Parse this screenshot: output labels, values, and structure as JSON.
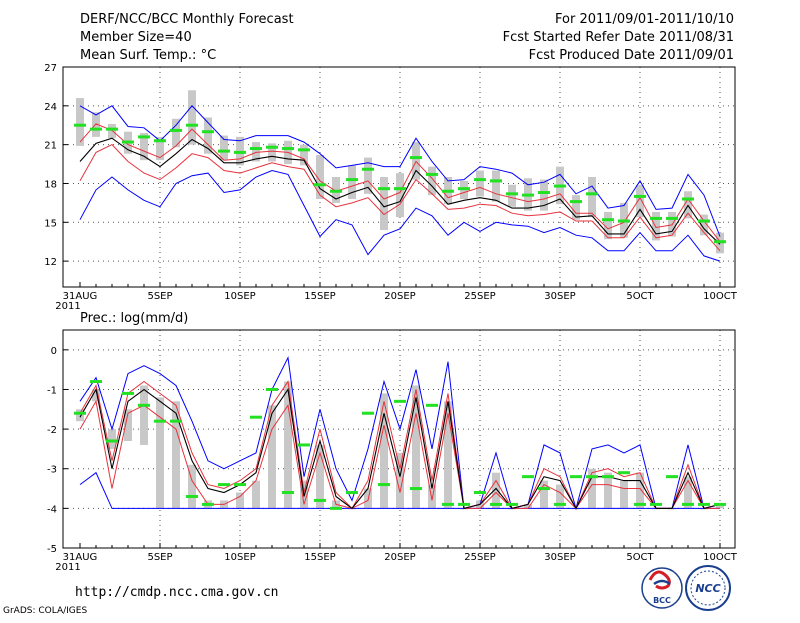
{
  "header": {
    "title": "DERF/NCC/BCC Monthly Forecast",
    "member_size": "Member Size=40",
    "variable": "Mean Surf. Temp.: °C",
    "period": "For 2011/09/01-2011/10/10",
    "started": "Fcst Started Refer Date 2011/08/31",
    "produced": "Fcst Produced Date 2011/09/01"
  },
  "footer": {
    "url": "http://cmdp.ncc.cma.gov.cn",
    "credit": "GrADS: COLA/IGES",
    "logo_bcc": "BCC",
    "logo_ncc": "NCC"
  },
  "colors": {
    "ensemble_mean": "#000000",
    "spread_band": "#e8323c",
    "extremes": "#0000ff",
    "median_marker": "#22e122",
    "box": "#c8c8c8",
    "grid": "#555555"
  },
  "chart_data": [
    {
      "type": "line",
      "title": "Mean Surf. Temp.: °C",
      "x_tick_labels": [
        "31AUG",
        "5SEP",
        "10SEP",
        "15SEP",
        "20SEP",
        "25SEP",
        "30SEP",
        "5OCT",
        "10OCT"
      ],
      "x_year_label": "2011",
      "ylim": [
        10,
        27
      ],
      "y_ticks": [
        12,
        15,
        18,
        21,
        24,
        27
      ],
      "series": [
        {
          "name": "max",
          "values": [
            24.0,
            23.3,
            24.0,
            22.4,
            22.3,
            21.3,
            22.5,
            24.0,
            22.7,
            21.4,
            21.3,
            21.7,
            21.7,
            21.7,
            21.2,
            20.3,
            19.2,
            19.4,
            19.6,
            19.3,
            19.3,
            21.5,
            19.7,
            18.2,
            18.3,
            19.3,
            19.1,
            18.8,
            17.9,
            18.1,
            18.7,
            17.2,
            17.8,
            16.1,
            16.3,
            18.2,
            16.0,
            16.1,
            18.7,
            17.1,
            13.9
          ]
        },
        {
          "name": "upper",
          "values": [
            21.2,
            22.6,
            22.1,
            21.0,
            20.5,
            20.0,
            20.9,
            22.2,
            21.0,
            19.8,
            19.9,
            20.4,
            20.5,
            20.4,
            19.9,
            18.2,
            17.4,
            17.8,
            18.2,
            16.8,
            17.3,
            19.7,
            18.4,
            16.9,
            17.3,
            17.7,
            17.2,
            16.9,
            16.6,
            16.8,
            17.2,
            15.7,
            15.7,
            14.5,
            15.0,
            16.9,
            14.6,
            14.8,
            16.8,
            15.1,
            13.5
          ]
        },
        {
          "name": "mean",
          "values": [
            19.7,
            21.1,
            21.5,
            20.6,
            20.1,
            19.3,
            20.3,
            21.4,
            20.7,
            19.6,
            19.6,
            19.9,
            20.1,
            19.9,
            19.8,
            17.6,
            16.8,
            17.3,
            17.7,
            16.2,
            16.6,
            19.0,
            17.8,
            16.4,
            16.7,
            16.9,
            16.7,
            16.1,
            16.1,
            16.3,
            16.8,
            15.4,
            15.5,
            14.1,
            14.1,
            16.0,
            14.1,
            14.3,
            16.3,
            14.5,
            13.3
          ]
        },
        {
          "name": "lower",
          "values": [
            18.2,
            20.4,
            21.0,
            19.7,
            18.8,
            18.3,
            19.2,
            20.3,
            20.0,
            19.0,
            18.8,
            19.2,
            19.6,
            19.3,
            19.1,
            17.1,
            16.2,
            16.5,
            16.9,
            15.6,
            16.4,
            18.3,
            17.2,
            16.0,
            16.1,
            16.4,
            16.3,
            15.7,
            15.5,
            15.6,
            15.8,
            15.1,
            15.1,
            13.8,
            13.8,
            15.4,
            13.8,
            14.0,
            15.7,
            14.2,
            12.8
          ]
        },
        {
          "name": "min",
          "values": [
            15.2,
            17.5,
            18.5,
            17.5,
            16.7,
            16.2,
            18.0,
            18.6,
            18.8,
            17.3,
            17.5,
            18.5,
            19.0,
            18.7,
            16.3,
            13.9,
            15.2,
            14.8,
            12.5,
            14.0,
            14.5,
            16.1,
            15.5,
            14.0,
            15.0,
            14.3,
            15.0,
            14.8,
            14.7,
            14.2,
            14.6,
            14.0,
            13.8,
            12.8,
            12.8,
            14.2,
            12.8,
            12.8,
            14.0,
            12.4,
            12.0
          ]
        },
        {
          "name": "median",
          "values": [
            22.5,
            22.2,
            22.2,
            21.2,
            21.6,
            21.3,
            22.1,
            22.5,
            22.0,
            20.5,
            20.4,
            20.7,
            20.8,
            20.7,
            20.6,
            17.9,
            17.4,
            18.3,
            19.1,
            17.6,
            17.6,
            20.0,
            18.7,
            17.4,
            17.6,
            18.3,
            18.2,
            17.2,
            17.1,
            17.3,
            17.8,
            16.6,
            17.2,
            15.2,
            15.1,
            17.0,
            15.3,
            15.3,
            16.8,
            15.1,
            13.5
          ]
        },
        {
          "name": "box_high",
          "values": [
            24.6,
            23.5,
            22.6,
            22.0,
            21.9,
            21.6,
            23.0,
            25.2,
            23.1,
            21.7,
            21.6,
            21.2,
            21.1,
            21.3,
            21.0,
            20.2,
            18.5,
            19.4,
            20.0,
            18.5,
            18.8,
            21.2,
            19.3,
            18.5,
            18.2,
            19.0,
            19.0,
            17.9,
            18.4,
            18.3,
            19.3,
            17.1,
            18.5,
            15.8,
            16.5,
            17.9,
            15.8,
            15.8,
            17.4,
            15.6,
            14.2
          ]
        },
        {
          "name": "box_low",
          "values": [
            20.9,
            21.6,
            21.5,
            20.3,
            19.8,
            19.8,
            20.8,
            21.0,
            20.3,
            19.8,
            19.4,
            19.7,
            19.7,
            19.5,
            19.4,
            16.8,
            16.5,
            16.8,
            17.2,
            14.4,
            15.4,
            18.3,
            17.1,
            16.4,
            16.8,
            17.0,
            16.6,
            16.2,
            15.9,
            15.9,
            16.4,
            15.2,
            15.4,
            13.7,
            13.8,
            15.4,
            13.6,
            13.9,
            15.3,
            14.0,
            12.6
          ]
        }
      ]
    },
    {
      "type": "line",
      "title": "Prec.: log(mm/d)",
      "x_tick_labels": [
        "31AUG",
        "5SEP",
        "10SEP",
        "15SEP",
        "20SEP",
        "25SEP",
        "30SEP",
        "5OCT",
        "10OCT"
      ],
      "x_year_label": "2011",
      "ylim": [
        -5,
        0.5
      ],
      "y_ticks": [
        0,
        -1,
        -2,
        -3,
        -4,
        -5
      ],
      "series": [
        {
          "name": "max",
          "values": [
            -1.3,
            -0.7,
            -2.0,
            -0.6,
            -0.4,
            -0.6,
            -0.9,
            -1.8,
            -2.8,
            -3.0,
            -2.8,
            -2.6,
            -1.0,
            -0.2,
            -3.2,
            -1.5,
            -3.0,
            -3.8,
            -2.5,
            -0.8,
            -2.0,
            -0.5,
            -2.5,
            -0.3,
            -4.0,
            -3.9,
            -2.6,
            -4.0,
            -3.9,
            -2.4,
            -2.6,
            -4.0,
            -2.5,
            -2.4,
            -2.6,
            -2.4,
            -4.0,
            -4.0,
            -2.4,
            -4.0,
            -3.9
          ]
        },
        {
          "name": "upper",
          "values": [
            -1.6,
            -0.9,
            -2.8,
            -1.1,
            -0.8,
            -1.1,
            -1.4,
            -2.6,
            -3.4,
            -3.5,
            -3.3,
            -3.0,
            -1.4,
            -0.8,
            -3.6,
            -2.0,
            -3.6,
            -4.0,
            -3.3,
            -1.3,
            -3.0,
            -1.0,
            -3.3,
            -1.1,
            -4.0,
            -3.9,
            -3.3,
            -4.0,
            -3.9,
            -3.0,
            -3.2,
            -4.0,
            -3.1,
            -3.0,
            -3.2,
            -3.1,
            -4.0,
            -4.0,
            -2.9,
            -4.0,
            -3.9
          ]
        },
        {
          "name": "mean",
          "values": [
            -1.7,
            -1.0,
            -3.0,
            -1.3,
            -1.0,
            -1.3,
            -1.6,
            -2.8,
            -3.5,
            -3.6,
            -3.4,
            -3.1,
            -1.6,
            -1.0,
            -3.7,
            -2.3,
            -3.7,
            -4.0,
            -3.5,
            -1.6,
            -3.2,
            -1.2,
            -3.5,
            -1.3,
            -4.0,
            -3.9,
            -3.5,
            -4.0,
            -3.9,
            -3.2,
            -3.3,
            -4.0,
            -3.2,
            -3.2,
            -3.3,
            -3.3,
            -4.0,
            -4.0,
            -3.1,
            -4.0,
            -3.9
          ]
        },
        {
          "name": "lower",
          "values": [
            -2.0,
            -1.3,
            -3.5,
            -1.6,
            -1.4,
            -1.7,
            -2.0,
            -3.3,
            -3.9,
            -3.9,
            -3.7,
            -3.3,
            -2.0,
            -1.4,
            -3.9,
            -2.6,
            -3.9,
            -4.0,
            -3.8,
            -1.9,
            -3.6,
            -1.6,
            -3.8,
            -1.6,
            -4.0,
            -4.0,
            -3.6,
            -4.0,
            -4.0,
            -3.4,
            -3.6,
            -4.0,
            -3.4,
            -3.4,
            -3.5,
            -3.5,
            -4.0,
            -4.0,
            -3.3,
            -4.0,
            -4.0
          ]
        },
        {
          "name": "min",
          "values": [
            -3.4,
            -3.1,
            -4.0,
            -4.0,
            -4.0,
            -4.0,
            -4.0,
            -4.0,
            -4.0,
            -4.0,
            -4.0,
            -4.0,
            -4.0,
            -4.0,
            -4.0,
            -4.0,
            -4.0,
            -4.0,
            -4.0,
            -4.0,
            -4.0,
            -4.0,
            -4.0,
            -4.0,
            -4.0,
            -4.0,
            -4.0,
            -4.0,
            -4.0,
            -4.0,
            -4.0,
            -4.0,
            -4.0,
            -4.0,
            -4.0,
            -4.0,
            -4.0,
            -4.0,
            -4.0,
            -4.0,
            -4.0
          ]
        },
        {
          "name": "median",
          "values": [
            -1.6,
            -0.8,
            -2.3,
            -1.1,
            -1.4,
            -1.8,
            -1.8,
            -3.7,
            -3.9,
            -3.4,
            -3.4,
            -1.7,
            -1.0,
            -3.6,
            -2.4,
            -3.8,
            -4.0,
            -3.6,
            -1.6,
            -3.4,
            -1.3,
            -3.5,
            -1.4,
            -3.9,
            -3.9,
            -3.6,
            -3.9,
            -3.9,
            -3.2,
            -3.5,
            -3.9,
            -3.2,
            -3.2,
            -3.2,
            -3.1,
            -3.9,
            -3.9,
            -3.2,
            -3.9,
            -3.9,
            -3.9
          ]
        },
        {
          "name": "box_high",
          "values": [
            -1.5,
            -1.0,
            -2.0,
            -1.5,
            -0.9,
            -1.2,
            -1.3,
            -2.9,
            -3.8,
            -3.8,
            -3.6,
            -3.3,
            -1.4,
            -0.8,
            -3.3,
            -2.4,
            -3.8,
            -4.0,
            -3.5,
            -1.1,
            -2.6,
            -0.9,
            -3.4,
            -1.3,
            -4.0,
            -3.8,
            -3.1,
            -4.0,
            -3.9,
            -3.3,
            -3.4,
            -4.0,
            -3.0,
            -3.1,
            -3.3,
            -3.1,
            -4.0,
            -4.0,
            -3.2,
            -4.0,
            -3.9
          ]
        },
        {
          "name": "box_low",
          "values": [
            -1.8,
            -1.3,
            -2.5,
            -2.3,
            -2.4,
            -4.0,
            -4.0,
            -4.0,
            -4.0,
            -4.0,
            -4.0,
            -4.0,
            -4.0,
            -4.0,
            -4.0,
            -4.0,
            -4.0,
            -4.0,
            -4.0,
            -4.0,
            -4.0,
            -4.0,
            -4.0,
            -4.0,
            -4.0,
            -4.0,
            -4.0,
            -4.0,
            -4.0,
            -4.0,
            -4.0,
            -4.0,
            -4.0,
            -4.0,
            -4.0,
            -4.0,
            -4.0,
            -4.0,
            -4.0,
            -4.0,
            -4.0
          ]
        }
      ]
    }
  ]
}
